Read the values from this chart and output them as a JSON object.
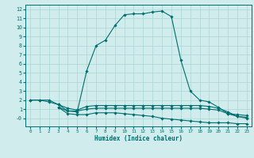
{
  "line1_x": [
    0,
    1,
    2,
    3,
    4,
    5,
    6,
    7,
    8,
    9,
    10,
    11,
    12,
    13,
    14,
    15,
    16,
    17,
    18,
    19,
    20,
    21,
    22,
    23
  ],
  "line1_y": [
    2.0,
    2.0,
    2.0,
    1.5,
    0.8,
    0.7,
    5.2,
    8.0,
    8.6,
    10.2,
    11.4,
    11.5,
    11.5,
    11.7,
    11.8,
    11.2,
    6.4,
    3.0,
    2.0,
    1.8,
    1.2,
    0.5,
    0.4,
    0.3
  ],
  "line2_x": [
    0,
    1,
    2,
    3,
    4,
    5,
    6,
    7,
    8,
    9,
    10,
    11,
    12,
    13,
    14,
    15,
    16,
    17,
    18,
    19,
    20,
    21,
    22,
    23
  ],
  "line2_y": [
    2.0,
    2.0,
    1.8,
    1.5,
    1.1,
    0.9,
    1.3,
    1.4,
    1.4,
    1.4,
    1.4,
    1.4,
    1.4,
    1.4,
    1.4,
    1.4,
    1.4,
    1.4,
    1.4,
    1.3,
    1.1,
    0.7,
    0.2,
    0.1
  ],
  "line3_x": [
    3,
    4,
    5,
    6,
    7,
    8,
    9,
    10,
    11,
    12,
    13,
    14,
    15,
    16,
    17,
    18,
    19,
    20,
    21,
    22,
    23
  ],
  "line3_y": [
    1.2,
    0.5,
    0.4,
    0.4,
    0.6,
    0.6,
    0.6,
    0.5,
    0.4,
    0.3,
    0.2,
    0.0,
    -0.1,
    -0.2,
    -0.3,
    -0.4,
    -0.5,
    -0.5,
    -0.5,
    -0.6,
    -0.6
  ],
  "line4_x": [
    3,
    4,
    5,
    6,
    7,
    8,
    9,
    10,
    11,
    12,
    13,
    14,
    15,
    16,
    17,
    18,
    19,
    20,
    21,
    22,
    23
  ],
  "line4_y": [
    1.2,
    0.8,
    0.8,
    1.0,
    1.1,
    1.1,
    1.1,
    1.1,
    1.1,
    1.1,
    1.1,
    1.1,
    1.1,
    1.1,
    1.1,
    1.1,
    1.0,
    0.9,
    0.5,
    0.2,
    0.0
  ],
  "line_color": "#006e6e",
  "bg_color": "#d0ecec",
  "grid_color": "#aad4d4",
  "xlabel": "Humidex (Indice chaleur)",
  "xlim": [
    -0.5,
    23.5
  ],
  "ylim": [
    -0.9,
    12.5
  ],
  "ytick_vals": [
    0,
    1,
    2,
    3,
    4,
    5,
    6,
    7,
    8,
    9,
    10,
    11,
    12
  ],
  "ytick_labels": [
    "-0",
    "1",
    "2",
    "3",
    "4",
    "5",
    "6",
    "7",
    "8",
    "9",
    "10",
    "11",
    "12"
  ],
  "xticks": [
    0,
    1,
    2,
    3,
    4,
    5,
    6,
    7,
    8,
    9,
    10,
    11,
    12,
    13,
    14,
    15,
    16,
    17,
    18,
    19,
    20,
    21,
    22,
    23
  ]
}
